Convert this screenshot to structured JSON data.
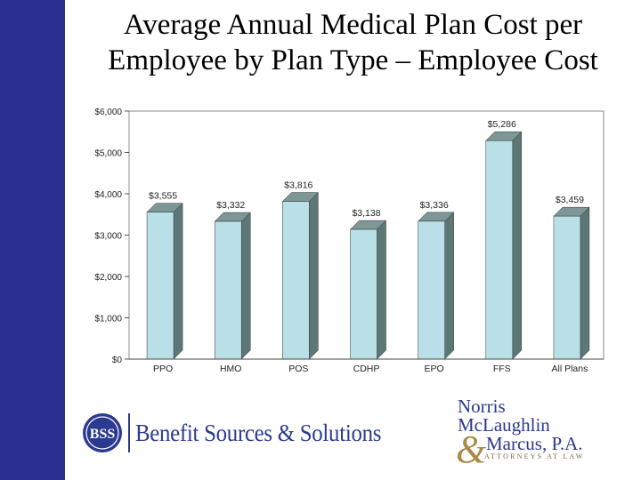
{
  "slide": {
    "title_line1": "Average Annual Medical Plan Cost per",
    "title_line2": "Employee by Plan Type – Employee Cost"
  },
  "colors": {
    "left_bar": "#2b2f8f",
    "bar_front": "#b9e0e6",
    "bar_side": "#5d7777",
    "plot_bg": "#ffffff"
  },
  "logos": {
    "bss_monogram": "BSS",
    "bss_name": "Benefit Sources & Solutions",
    "nmm_line1": "Norris",
    "nmm_line2": "McLaughlin",
    "nmm_amp": "&",
    "nmm_line3": "Marcus, P.A.",
    "nmm_tagline": "ATTORNEYS AT LAW"
  },
  "chart_data": {
    "type": "bar",
    "title": "",
    "xlabel": "",
    "ylabel": "",
    "categories": [
      "PPO",
      "HMO",
      "POS",
      "CDHP",
      "EPO",
      "FFS",
      "All Plans"
    ],
    "values": [
      3555,
      3332,
      3816,
      3138,
      3336,
      5286,
      3459
    ],
    "value_labels": [
      "$3,555",
      "$3,332",
      "$3,816",
      "$3,138",
      "$3,336",
      "$5,286",
      "$3,459"
    ],
    "ylim": [
      0,
      6000
    ],
    "yticks": [
      0,
      1000,
      2000,
      3000,
      4000,
      5000,
      6000
    ],
    "ytick_labels": [
      "$0",
      "$1,000",
      "$2,000",
      "$3,000",
      "$4,000",
      "$5,000",
      "$6,000"
    ],
    "grid": false,
    "legend": "none",
    "style": "3d"
  }
}
